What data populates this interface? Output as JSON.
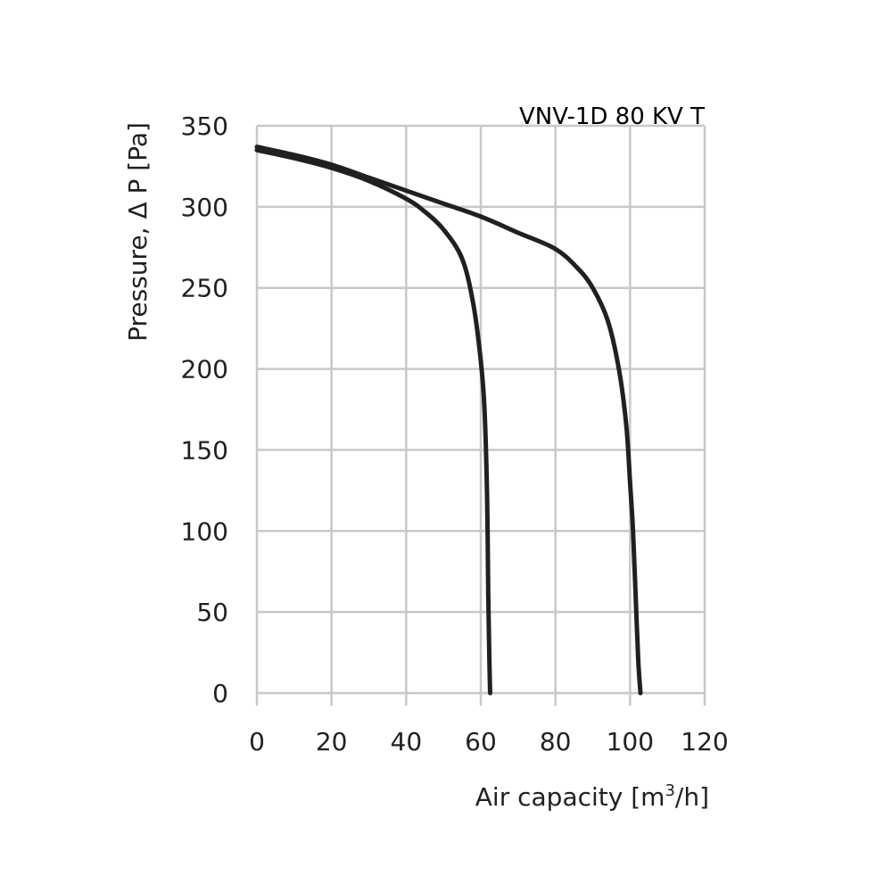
{
  "chart_data": {
    "type": "line",
    "title": "VNV-1D 80 KV T",
    "xlabel": "Air capacity [m",
    "xlabel_sup": "3",
    "xlabel_suffix": "/h]",
    "ylabel": "Pressure, Δ P [Pa]",
    "xlim": [
      0,
      120
    ],
    "ylim": [
      0,
      350
    ],
    "x_ticks": [
      "0",
      "20",
      "40",
      "60",
      "80",
      "100",
      "120"
    ],
    "y_ticks": [
      "0",
      "50",
      "100",
      "150",
      "200",
      "250",
      "300",
      "350"
    ],
    "grid": true,
    "line_color": "#231f20",
    "grid_color": "#c8c8c8",
    "series": [
      {
        "points": [
          [
            0,
            335
          ],
          [
            10,
            330
          ],
          [
            20,
            324
          ],
          [
            30,
            316
          ],
          [
            40,
            305
          ],
          [
            45,
            297
          ],
          [
            50,
            286
          ],
          [
            55,
            268
          ],
          [
            58,
            240
          ],
          [
            60,
            205
          ],
          [
            61,
            175
          ],
          [
            61.7,
            120
          ],
          [
            62,
            60
          ],
          [
            62.3,
            20
          ],
          [
            62.5,
            0
          ]
        ]
      },
      {
        "points": [
          [
            0,
            337
          ],
          [
            10,
            332
          ],
          [
            20,
            326
          ],
          [
            30,
            318
          ],
          [
            40,
            310
          ],
          [
            50,
            302
          ],
          [
            60,
            294
          ],
          [
            70,
            284
          ],
          [
            80,
            274
          ],
          [
            86,
            262
          ],
          [
            90,
            250
          ],
          [
            94,
            230
          ],
          [
            97,
            200
          ],
          [
            99,
            165
          ],
          [
            100,
            130
          ],
          [
            100.8,
            100
          ],
          [
            101.5,
            60
          ],
          [
            102.2,
            20
          ],
          [
            102.8,
            0
          ]
        ]
      }
    ]
  }
}
